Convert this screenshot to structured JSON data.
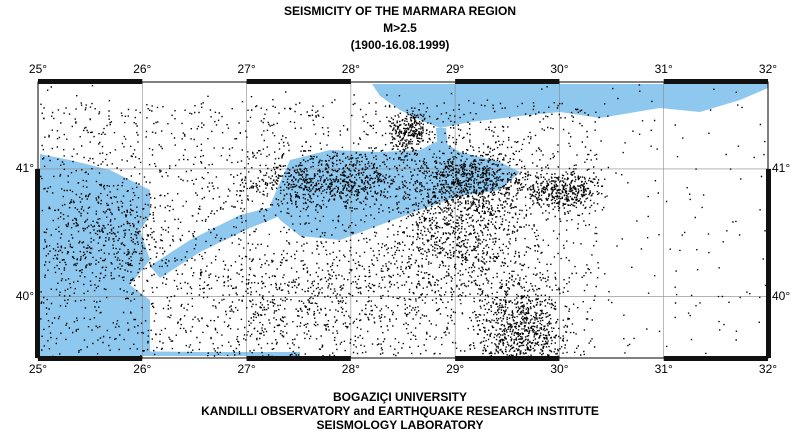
{
  "header": {
    "lines": [
      "SEISMICITY OF THE MARMARA REGION",
      "M>2.5",
      "(1900-16.08.1999)"
    ]
  },
  "map": {
    "lon_range": [
      25,
      32
    ],
    "lat_range": [
      39.52,
      41.68
    ],
    "lon_ticks": [
      {
        "value": 25,
        "label": "25°"
      },
      {
        "value": 26,
        "label": "26°"
      },
      {
        "value": 27,
        "label": "27°"
      },
      {
        "value": 28,
        "label": "28°"
      },
      {
        "value": 29,
        "label": "29°"
      },
      {
        "value": 30,
        "label": "30°"
      },
      {
        "value": 31,
        "label": "31°"
      },
      {
        "value": 32,
        "label": "32°"
      }
    ],
    "lat_ticks": [
      {
        "value": 41,
        "label": "41°"
      },
      {
        "value": 40,
        "label": "40°"
      }
    ]
  },
  "footer": {
    "lines": [
      "BOGAZIÇI UNIVERSITY",
      "KANDILLI OBSERVATORY and EARTHQUAKE RESEARCH INSTITUTE",
      "SEISMOLOGY LABORATORY"
    ]
  }
}
